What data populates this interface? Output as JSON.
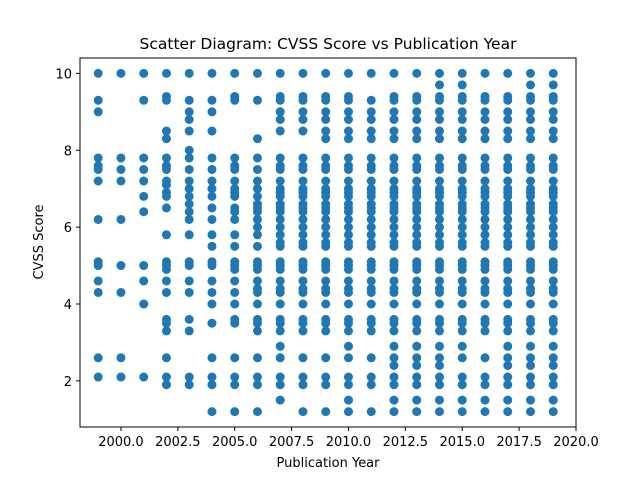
{
  "chart_data": {
    "type": "scatter",
    "title": "Scatter Diagram: CVSS Score vs Publication Year",
    "xlabel": "Publication Year",
    "ylabel": "CVSS Score",
    "xlim": [
      1998.2,
      2020.0
    ],
    "ylim": [
      0.8,
      10.4
    ],
    "xticks": [
      "2000.0",
      "2002.5",
      "2005.0",
      "2007.5",
      "2010.0",
      "2012.5",
      "2015.0",
      "2017.5",
      "2020.0"
    ],
    "yticks": [
      "2",
      "4",
      "6",
      "8",
      "10"
    ],
    "grid": false,
    "legend": "none",
    "marker_color": "#1f77b4",
    "series": [
      {
        "points_by_year": [
          {
            "x": 1999,
            "y": [
              10.0,
              9.3,
              9.0,
              7.8,
              7.6,
              7.5,
              7.2,
              6.2,
              5.1,
              5.0,
              4.6,
              4.3,
              2.6,
              2.1
            ]
          },
          {
            "x": 2000,
            "y": [
              10.0,
              7.8,
              7.5,
              7.2,
              6.2,
              5.0,
              4.3,
              2.6,
              2.1
            ]
          },
          {
            "x": 2001,
            "y": [
              10.0,
              9.3,
              7.8,
              7.5,
              7.2,
              6.8,
              6.4,
              5.0,
              4.6,
              4.0,
              2.1
            ]
          },
          {
            "x": 2002,
            "y": [
              10.0,
              9.4,
              9.3,
              8.5,
              8.3,
              7.8,
              7.6,
              7.5,
              7.2,
              7.1,
              6.9,
              6.8,
              6.5,
              5.8,
              5.1,
              5.0,
              4.9,
              4.6,
              4.3,
              3.6,
              3.5,
              3.3,
              2.6,
              2.1,
              1.9
            ]
          },
          {
            "x": 2003,
            "y": [
              10.0,
              9.3,
              9.0,
              8.8,
              8.5,
              8.0,
              7.8,
              7.5,
              7.2,
              7.0,
              6.8,
              6.6,
              6.4,
              6.2,
              5.8,
              5.1,
              5.0,
              4.6,
              4.3,
              3.6,
              3.3,
              2.1,
              1.9
            ]
          },
          {
            "x": 2004,
            "y": [
              10.0,
              9.3,
              9.0,
              8.5,
              7.8,
              7.5,
              7.2,
              7.0,
              6.8,
              6.5,
              6.2,
              5.8,
              5.5,
              5.1,
              5.0,
              4.6,
              4.3,
              4.0,
              3.5,
              2.6,
              2.1,
              1.9,
              1.2
            ]
          },
          {
            "x": 2005,
            "y": [
              10.0,
              9.4,
              9.3,
              7.8,
              7.6,
              7.5,
              7.2,
              7.0,
              6.9,
              6.8,
              6.5,
              6.4,
              6.2,
              5.8,
              5.5,
              5.1,
              5.0,
              4.9,
              4.6,
              4.3,
              4.0,
              3.6,
              3.5,
              2.6,
              2.1,
              1.9,
              1.2
            ]
          },
          {
            "x": 2006,
            "y": [
              10.0,
              9.3,
              8.3,
              7.8,
              7.5,
              7.2,
              7.0,
              6.8,
              6.6,
              6.5,
              6.4,
              6.2,
              6.0,
              5.8,
              5.5,
              5.1,
              5.0,
              4.9,
              4.6,
              4.4,
              4.3,
              4.0,
              3.6,
              3.5,
              3.3,
              2.6,
              2.1,
              1.9,
              1.2
            ]
          },
          {
            "x": 2007,
            "y": [
              10.0,
              9.4,
              9.3,
              9.0,
              8.8,
              8.5,
              7.8,
              7.6,
              7.5,
              7.2,
              7.0,
              6.9,
              6.8,
              6.6,
              6.5,
              6.4,
              6.2,
              6.0,
              5.8,
              5.6,
              5.5,
              5.1,
              5.0,
              4.9,
              4.6,
              4.4,
              4.3,
              4.0,
              3.6,
              3.5,
              3.3,
              2.9,
              2.6,
              2.1,
              1.9,
              1.5
            ]
          },
          {
            "x": 2008,
            "y": [
              10.0,
              9.4,
              9.3,
              9.0,
              8.8,
              8.5,
              7.8,
              7.6,
              7.5,
              7.2,
              7.0,
              6.9,
              6.8,
              6.6,
              6.5,
              6.4,
              6.2,
              6.0,
              5.8,
              5.6,
              5.5,
              5.1,
              5.0,
              4.9,
              4.6,
              4.4,
              4.3,
              4.0,
              3.6,
              3.5,
              3.3,
              2.6,
              2.1,
              1.9,
              1.2
            ]
          },
          {
            "x": 2009,
            "y": [
              10.0,
              9.4,
              9.3,
              9.0,
              8.8,
              8.5,
              8.3,
              7.8,
              7.6,
              7.5,
              7.2,
              7.0,
              6.9,
              6.8,
              6.6,
              6.5,
              6.4,
              6.2,
              6.0,
              5.8,
              5.6,
              5.5,
              5.1,
              5.0,
              4.9,
              4.6,
              4.4,
              4.3,
              4.0,
              3.6,
              3.5,
              3.3,
              2.6,
              2.1,
              1.9,
              1.2
            ]
          },
          {
            "x": 2010,
            "y": [
              10.0,
              9.4,
              9.3,
              9.0,
              8.8,
              8.5,
              8.3,
              7.8,
              7.6,
              7.5,
              7.2,
              7.0,
              6.9,
              6.8,
              6.6,
              6.5,
              6.4,
              6.2,
              6.0,
              5.8,
              5.6,
              5.5,
              5.1,
              5.0,
              4.9,
              4.6,
              4.4,
              4.3,
              4.0,
              3.6,
              3.5,
              3.3,
              2.9,
              2.6,
              2.1,
              1.9,
              1.5,
              1.2
            ]
          },
          {
            "x": 2011,
            "y": [
              10.0,
              9.3,
              9.0,
              8.8,
              8.5,
              8.3,
              7.8,
              7.6,
              7.5,
              7.2,
              7.0,
              6.9,
              6.8,
              6.6,
              6.5,
              6.4,
              6.2,
              6.0,
              5.8,
              5.6,
              5.5,
              5.1,
              5.0,
              4.9,
              4.6,
              4.4,
              4.3,
              4.0,
              3.6,
              3.5,
              3.3,
              2.6,
              2.1,
              1.9,
              1.2
            ]
          },
          {
            "x": 2012,
            "y": [
              10.0,
              9.4,
              9.3,
              9.0,
              8.8,
              8.5,
              8.3,
              7.8,
              7.6,
              7.5,
              7.2,
              7.0,
              6.9,
              6.8,
              6.6,
              6.5,
              6.4,
              6.2,
              6.0,
              5.8,
              5.6,
              5.5,
              5.1,
              5.0,
              4.9,
              4.6,
              4.4,
              4.3,
              4.0,
              3.6,
              3.5,
              3.3,
              2.9,
              2.6,
              2.4,
              2.1,
              1.9,
              1.5,
              1.2
            ]
          },
          {
            "x": 2013,
            "y": [
              10.0,
              9.4,
              9.3,
              9.0,
              8.8,
              8.5,
              8.3,
              7.8,
              7.6,
              7.5,
              7.2,
              7.0,
              6.9,
              6.8,
              6.6,
              6.5,
              6.4,
              6.2,
              6.0,
              5.8,
              5.6,
              5.5,
              5.1,
              5.0,
              4.9,
              4.6,
              4.4,
              4.3,
              4.0,
              3.6,
              3.5,
              3.3,
              2.9,
              2.6,
              2.4,
              2.1,
              1.9,
              1.5,
              1.2
            ]
          },
          {
            "x": 2014,
            "y": [
              10.0,
              9.7,
              9.4,
              9.3,
              9.0,
              8.8,
              8.5,
              8.3,
              7.8,
              7.6,
              7.5,
              7.2,
              7.0,
              6.9,
              6.8,
              6.6,
              6.5,
              6.4,
              6.2,
              6.0,
              5.8,
              5.6,
              5.5,
              5.1,
              5.0,
              4.9,
              4.6,
              4.4,
              4.3,
              4.0,
              3.6,
              3.5,
              3.3,
              2.9,
              2.6,
              2.4,
              2.1,
              1.9,
              1.5,
              1.2
            ]
          },
          {
            "x": 2015,
            "y": [
              10.0,
              9.7,
              9.4,
              9.3,
              9.0,
              8.8,
              8.5,
              8.3,
              7.8,
              7.6,
              7.5,
              7.2,
              7.0,
              6.9,
              6.8,
              6.6,
              6.5,
              6.4,
              6.2,
              6.0,
              5.8,
              5.6,
              5.5,
              5.1,
              5.0,
              4.9,
              4.6,
              4.4,
              4.3,
              4.0,
              3.6,
              3.5,
              3.3,
              2.9,
              2.6,
              2.1,
              1.9,
              1.5,
              1.2
            ]
          },
          {
            "x": 2016,
            "y": [
              10.0,
              9.4,
              9.3,
              9.0,
              8.8,
              8.5,
              8.3,
              7.8,
              7.6,
              7.5,
              7.2,
              7.0,
              6.9,
              6.8,
              6.6,
              6.5,
              6.4,
              6.2,
              6.0,
              5.8,
              5.6,
              5.5,
              5.1,
              5.0,
              4.9,
              4.6,
              4.4,
              4.3,
              4.0,
              3.6,
              3.5,
              3.3,
              2.6,
              2.1,
              1.9,
              1.5,
              1.2
            ]
          },
          {
            "x": 2017,
            "y": [
              10.0,
              9.4,
              9.3,
              9.0,
              8.8,
              8.5,
              8.3,
              7.8,
              7.6,
              7.5,
              7.2,
              7.0,
              6.9,
              6.8,
              6.6,
              6.5,
              6.4,
              6.2,
              6.0,
              5.8,
              5.6,
              5.5,
              5.1,
              5.0,
              4.9,
              4.6,
              4.4,
              4.3,
              4.0,
              3.6,
              3.5,
              3.3,
              2.9,
              2.6,
              2.4,
              2.1,
              1.9,
              1.5,
              1.2
            ]
          },
          {
            "x": 2018,
            "y": [
              10.0,
              9.7,
              9.4,
              9.3,
              9.0,
              8.8,
              8.5,
              8.3,
              7.8,
              7.6,
              7.5,
              7.2,
              7.0,
              6.9,
              6.8,
              6.6,
              6.5,
              6.4,
              6.2,
              6.0,
              5.8,
              5.6,
              5.5,
              5.1,
              5.0,
              4.9,
              4.6,
              4.4,
              4.3,
              4.0,
              3.6,
              3.5,
              3.3,
              2.9,
              2.6,
              2.4,
              2.1,
              1.9,
              1.5,
              1.2
            ]
          },
          {
            "x": 2019,
            "y": [
              10.0,
              9.7,
              9.4,
              9.3,
              9.0,
              8.8,
              8.5,
              8.3,
              7.8,
              7.6,
              7.5,
              7.2,
              7.0,
              6.9,
              6.8,
              6.6,
              6.5,
              6.4,
              6.2,
              6.0,
              5.8,
              5.6,
              5.5,
              5.1,
              5.0,
              4.9,
              4.6,
              4.4,
              4.3,
              4.0,
              3.6,
              3.5,
              3.3,
              2.9,
              2.6,
              2.4,
              2.1,
              1.9,
              1.5,
              1.2
            ]
          }
        ]
      }
    ]
  }
}
